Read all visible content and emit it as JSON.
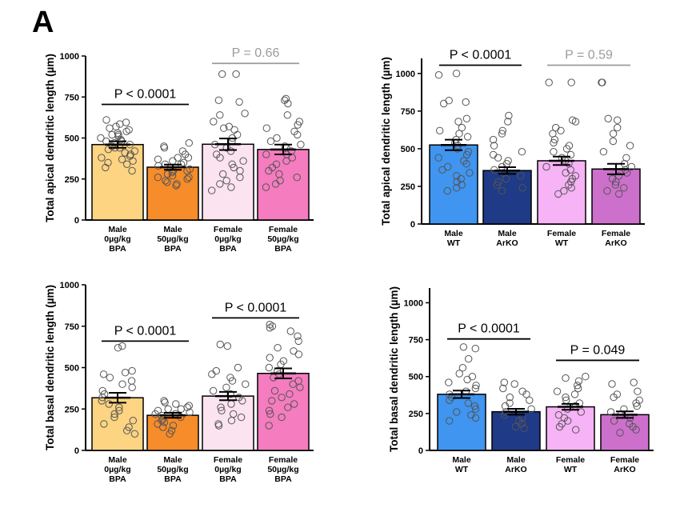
{
  "panel_label": "A",
  "colors": {
    "bpa_male_0": "#FDD482",
    "bpa_male_50": "#F68C2A",
    "bpa_female_0": "#FCE3F0",
    "bpa_female_50": "#F47CBF",
    "wt_male": "#3F95F0",
    "arko_male": "#1F3A86",
    "wt_female": "#F6B3F6",
    "arko_female": "#CD70CC",
    "sig_text": "#000000",
    "ns_text": "#9B9B9B"
  },
  "chart_data": [
    {
      "type": "bar",
      "title": "",
      "ylabel": "Total apical dendritic length (µm)",
      "xlabel": "",
      "ylim": [
        0,
        1000
      ],
      "yticks": [
        "0",
        "250",
        "500",
        "750",
        "1000"
      ],
      "categories": [
        [
          "Male",
          "0µg/kg",
          "BPA"
        ],
        [
          "Male",
          "50µg/kg",
          "BPA"
        ],
        [
          "Female",
          "0µg/kg",
          "BPA"
        ],
        [
          "Female",
          "50µg/kg",
          "BPA"
        ]
      ],
      "values": [
        460,
        322,
        462,
        430
      ],
      "errors": [
        20,
        16,
        35,
        30
      ],
      "bar_colors": [
        "bpa_male_0",
        "bpa_male_50",
        "bpa_female_0",
        "bpa_female_50"
      ],
      "points": [
        [
          610,
          595,
          585,
          570,
          560,
          550,
          540,
          530,
          520,
          510,
          500,
          490,
          480,
          470,
          460,
          450,
          440,
          430,
          420,
          410,
          400,
          390,
          380,
          370,
          360,
          350,
          340,
          320,
          300,
          480,
          520,
          440
        ],
        [
          470,
          450,
          440,
          420,
          400,
          380,
          370,
          360,
          350,
          340,
          330,
          320,
          310,
          300,
          290,
          280,
          270,
          260,
          250,
          240,
          230,
          220,
          210,
          300,
          340,
          380,
          260
        ],
        [
          890,
          890,
          730,
          720,
          650,
          640,
          600,
          570,
          560,
          550,
          520,
          500,
          480,
          460,
          440,
          420,
          400,
          380,
          360,
          340,
          320,
          300,
          280,
          260,
          240,
          220,
          200,
          180
        ],
        [
          740,
          730,
          710,
          640,
          600,
          580,
          560,
          540,
          520,
          500,
          480,
          460,
          440,
          420,
          400,
          380,
          360,
          340,
          320,
          300,
          280,
          260,
          240,
          220,
          200,
          400,
          450
        ]
      ],
      "significance": [
        {
          "from": 0,
          "to": 1,
          "label": "P < 0.0001",
          "style": "sig_text",
          "y": 705
        },
        {
          "from": 2,
          "to": 3,
          "label": "P = 0.66",
          "style": "ns_text",
          "y": 955
        }
      ]
    },
    {
      "type": "bar",
      "title": "",
      "ylabel": "Total apical dendritic length (µm)",
      "xlabel": "",
      "ylim": [
        0,
        1100
      ],
      "yticks": [
        "0",
        "250",
        "500",
        "750",
        "1000"
      ],
      "categories": [
        [
          "Male",
          "WT"
        ],
        [
          "Male",
          "ArKO"
        ],
        [
          "Female",
          "WT"
        ],
        [
          "Female",
          "ArKO"
        ]
      ],
      "values": [
        525,
        355,
        420,
        365
      ],
      "errors": [
        35,
        22,
        28,
        35
      ],
      "bar_colors": [
        "wt_male",
        "arko_male",
        "wt_female",
        "arko_female"
      ],
      "points": [
        [
          1000,
          990,
          820,
          810,
          800,
          700,
          680,
          640,
          620,
          600,
          580,
          560,
          540,
          520,
          500,
          480,
          460,
          440,
          420,
          400,
          380,
          360,
          340,
          320,
          300,
          280,
          260,
          240,
          220
        ],
        [
          720,
          680,
          620,
          600,
          560,
          520,
          480,
          460,
          440,
          420,
          400,
          380,
          360,
          340,
          320,
          300,
          280,
          260,
          240,
          220
        ],
        [
          940,
          940,
          690,
          680,
          640,
          620,
          600,
          560,
          540,
          520,
          500,
          480,
          460,
          440,
          420,
          400,
          380,
          360,
          340,
          320,
          300,
          280,
          260,
          240,
          220,
          200
        ],
        [
          940,
          940,
          700,
          690,
          640,
          600,
          550,
          520,
          480,
          440,
          400,
          380,
          360,
          340,
          320,
          300,
          280,
          260,
          240,
          220,
          200
        ]
      ],
      "significance": [
        {
          "from": 0,
          "to": 1,
          "label": "P < 0.0001",
          "style": "sig_text",
          "y": 1055
        },
        {
          "from": 2,
          "to": 3,
          "label": "P = 0.59",
          "style": "ns_text",
          "y": 1055
        }
      ]
    },
    {
      "type": "bar",
      "title": "",
      "ylabel": "Total basal dendritic length (µm)",
      "xlabel": "",
      "ylim": [
        0,
        1000
      ],
      "yticks": [
        "0",
        "250",
        "500",
        "750",
        "1000"
      ],
      "categories": [
        [
          "Male",
          "0µg/kg",
          "BPA"
        ],
        [
          "Male",
          "50µg/kg",
          "BPA"
        ],
        [
          "Female",
          "0µg/kg",
          "BPA"
        ],
        [
          "Female",
          "50µg/kg",
          "BPA"
        ]
      ],
      "values": [
        318,
        212,
        328,
        465
      ],
      "errors": [
        30,
        15,
        25,
        30
      ],
      "bar_colors": [
        "bpa_male_0",
        "bpa_male_50",
        "bpa_female_0",
        "bpa_female_50"
      ],
      "points": [
        [
          630,
          620,
          480,
          470,
          460,
          440,
          420,
          400,
          380,
          360,
          340,
          320,
          300,
          280,
          260,
          240,
          220,
          200,
          180,
          160,
          140,
          120,
          100
        ],
        [
          300,
          290,
          280,
          270,
          260,
          250,
          240,
          230,
          220,
          210,
          200,
          190,
          180,
          170,
          160,
          150,
          140,
          120,
          100,
          220,
          250
        ],
        [
          640,
          630,
          500,
          480,
          460,
          440,
          420,
          400,
          380,
          360,
          340,
          320,
          300,
          280,
          260,
          240,
          220,
          200,
          180,
          160,
          150
        ],
        [
          760,
          750,
          740,
          720,
          690,
          660,
          620,
          600,
          580,
          560,
          540,
          520,
          500,
          480,
          460,
          440,
          420,
          400,
          380,
          360,
          340,
          320,
          300,
          280,
          260,
          240,
          220,
          200,
          150
        ]
      ],
      "significance": [
        {
          "from": 0,
          "to": 1,
          "label": "P < 0.0001",
          "style": "sig_text",
          "y": 660
        },
        {
          "from": 2,
          "to": 3,
          "label": "P < 0.0001",
          "style": "sig_text",
          "y": 800
        }
      ]
    },
    {
      "type": "bar",
      "title": "",
      "ylabel": "Total basal dendritic length (µm)",
      "xlabel": "",
      "ylim": [
        0,
        1100
      ],
      "yticks": [
        "0",
        "250",
        "500",
        "750",
        "1000"
      ],
      "categories": [
        [
          "Male",
          "WT"
        ],
        [
          "Male",
          "ArKO"
        ],
        [
          "Female",
          "WT"
        ],
        [
          "Female",
          "ArKO"
        ]
      ],
      "values": [
        380,
        262,
        295,
        242
      ],
      "errors": [
        25,
        20,
        20,
        22
      ],
      "bar_colors": [
        "wt_male",
        "arko_male",
        "wt_female",
        "arko_female"
      ],
      "points": [
        [
          700,
          690,
          620,
          560,
          520,
          500,
          480,
          460,
          440,
          420,
          400,
          380,
          360,
          340,
          320,
          300,
          280,
          260,
          240,
          220,
          200
        ],
        [
          460,
          450,
          420,
          400,
          380,
          360,
          340,
          320,
          300,
          280,
          260,
          240,
          220,
          200,
          180,
          160,
          150
        ],
        [
          500,
          490,
          470,
          440,
          420,
          400,
          380,
          360,
          340,
          320,
          300,
          280,
          260,
          240,
          220,
          200,
          180,
          160,
          140
        ],
        [
          460,
          450,
          400,
          380,
          360,
          340,
          320,
          300,
          280,
          260,
          240,
          220,
          200,
          180,
          160,
          140,
          120
        ]
      ],
      "significance": [
        {
          "from": 0,
          "to": 1,
          "label": "P < 0.0001",
          "style": "sig_text",
          "y": 755
        },
        {
          "from": 2,
          "to": 3,
          "label": "P = 0.049",
          "style": "sig_text",
          "y": 610
        }
      ]
    }
  ]
}
